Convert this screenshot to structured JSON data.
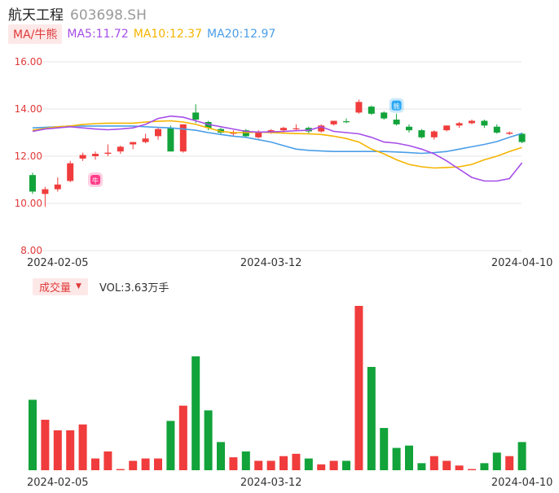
{
  "header": {
    "name": "航天工程",
    "code": "603698.SH"
  },
  "ma_legend": {
    "selector": "MA/牛熊",
    "ma5": "MA5:11.72",
    "ma10": "MA10:12.37",
    "ma20": "MA20:12.97",
    "colors": {
      "ma5": "#a64ee8",
      "ma10": "#f5b400",
      "ma20": "#4a9ee8"
    }
  },
  "volume_legend": {
    "selector": "成交量",
    "value": "VOL:3.63万手"
  },
  "markers": {
    "bull": "牛",
    "bear": "熊"
  },
  "colors": {
    "up": "#f03c3c",
    "down": "#12a33a",
    "axis_text": "#e03a3a",
    "grid": "#e6e6e6"
  },
  "chart_data": {
    "type": "candlestick",
    "y_ticks": [
      "16.00",
      "14.00",
      "12.00",
      "10.00",
      "8.00"
    ],
    "ylim": [
      8,
      16
    ],
    "x_tick_labels": [
      "2024-02-05",
      "2024-03-12",
      "2024-04-10"
    ],
    "x_tick_index": [
      2,
      19,
      39
    ],
    "candles": [
      {
        "o": 11.2,
        "h": 11.3,
        "l": 10.4,
        "c": 10.5
      },
      {
        "o": 10.4,
        "h": 10.7,
        "l": 9.85,
        "c": 10.6
      },
      {
        "o": 10.6,
        "h": 11.1,
        "l": 10.5,
        "c": 10.8
      },
      {
        "o": 10.95,
        "h": 11.8,
        "l": 10.9,
        "c": 11.7
      },
      {
        "o": 11.9,
        "h": 12.15,
        "l": 11.8,
        "c": 12.05
      },
      {
        "o": 12.0,
        "h": 12.2,
        "l": 11.85,
        "c": 12.1
      },
      {
        "o": 12.1,
        "h": 12.5,
        "l": 12.0,
        "c": 12.15
      },
      {
        "o": 12.2,
        "h": 12.45,
        "l": 12.1,
        "c": 12.4
      },
      {
        "o": 12.5,
        "h": 12.6,
        "l": 12.3,
        "c": 12.6
      },
      {
        "o": 12.6,
        "h": 12.95,
        "l": 12.55,
        "c": 12.75
      },
      {
        "o": 12.85,
        "h": 13.2,
        "l": 12.7,
        "c": 13.15
      },
      {
        "o": 13.2,
        "h": 13.3,
        "l": 12.2,
        "c": 12.2
      },
      {
        "o": 12.2,
        "h": 13.35,
        "l": 12.15,
        "c": 13.35
      },
      {
        "o": 13.85,
        "h": 14.2,
        "l": 13.4,
        "c": 13.55
      },
      {
        "o": 13.45,
        "h": 13.5,
        "l": 13.1,
        "c": 13.2
      },
      {
        "o": 13.15,
        "h": 13.2,
        "l": 12.95,
        "c": 13.0
      },
      {
        "o": 12.95,
        "h": 13.1,
        "l": 12.85,
        "c": 13.0
      },
      {
        "o": 13.1,
        "h": 13.15,
        "l": 12.8,
        "c": 12.85
      },
      {
        "o": 12.8,
        "h": 13.1,
        "l": 12.75,
        "c": 13.05
      },
      {
        "o": 13.0,
        "h": 13.15,
        "l": 12.95,
        "c": 13.1
      },
      {
        "o": 13.1,
        "h": 13.25,
        "l": 13.0,
        "c": 13.2
      },
      {
        "o": 13.15,
        "h": 13.35,
        "l": 13.1,
        "c": 13.18
      },
      {
        "o": 13.2,
        "h": 13.25,
        "l": 12.95,
        "c": 13.05
      },
      {
        "o": 13.05,
        "h": 13.35,
        "l": 13.0,
        "c": 13.3
      },
      {
        "o": 13.35,
        "h": 13.5,
        "l": 13.3,
        "c": 13.5
      },
      {
        "o": 13.48,
        "h": 13.6,
        "l": 13.4,
        "c": 13.45
      },
      {
        "o": 13.85,
        "h": 14.4,
        "l": 13.8,
        "c": 14.3
      },
      {
        "o": 14.1,
        "h": 14.15,
        "l": 13.75,
        "c": 13.8
      },
      {
        "o": 13.85,
        "h": 13.9,
        "l": 13.55,
        "c": 13.6
      },
      {
        "o": 13.55,
        "h": 13.8,
        "l": 13.3,
        "c": 13.35
      },
      {
        "o": 13.25,
        "h": 13.35,
        "l": 13.0,
        "c": 13.1
      },
      {
        "o": 13.1,
        "h": 13.15,
        "l": 12.75,
        "c": 12.8
      },
      {
        "o": 12.8,
        "h": 13.1,
        "l": 12.7,
        "c": 13.05
      },
      {
        "o": 13.1,
        "h": 13.3,
        "l": 13.05,
        "c": 13.3
      },
      {
        "o": 13.3,
        "h": 13.45,
        "l": 13.2,
        "c": 13.4
      },
      {
        "o": 13.4,
        "h": 13.55,
        "l": 13.35,
        "c": 13.5
      },
      {
        "o": 13.5,
        "h": 13.55,
        "l": 13.2,
        "c": 13.3
      },
      {
        "o": 13.25,
        "h": 13.35,
        "l": 12.95,
        "c": 13.0
      },
      {
        "o": 12.95,
        "h": 13.05,
        "l": 12.9,
        "c": 13.0
      },
      {
        "o": 12.95,
        "h": 13.0,
        "l": 12.55,
        "c": 12.6
      }
    ],
    "ma5": [
      13.05,
      13.15,
      13.2,
      13.25,
      13.2,
      13.15,
      13.12,
      13.15,
      13.2,
      13.35,
      13.6,
      13.7,
      13.65,
      13.5,
      13.35,
      13.25,
      13.15,
      13.05,
      13.02,
      13.03,
      13.05,
      13.08,
      13.1,
      13.25,
      13.05,
      13.0,
      12.95,
      12.8,
      12.6,
      12.55,
      12.45,
      12.3,
      12.1,
      11.8,
      11.45,
      11.1,
      10.95,
      10.95,
      11.05,
      11.72
    ],
    "ma10": [
      13.1,
      13.18,
      13.25,
      13.28,
      13.35,
      13.38,
      13.4,
      13.4,
      13.4,
      13.45,
      13.48,
      13.5,
      13.45,
      13.35,
      13.2,
      13.05,
      13.0,
      13.0,
      13.02,
      13.0,
      12.98,
      12.96,
      12.95,
      12.92,
      12.85,
      12.75,
      12.6,
      12.3,
      12.1,
      11.85,
      11.65,
      11.55,
      11.5,
      11.52,
      11.55,
      11.65,
      11.85,
      12.0,
      12.2,
      12.37
    ],
    "ma20": [
      13.2,
      13.22,
      13.25,
      13.28,
      13.28,
      13.28,
      13.28,
      13.28,
      13.28,
      13.25,
      13.22,
      13.2,
      13.15,
      13.1,
      13.0,
      12.92,
      12.85,
      12.8,
      12.7,
      12.6,
      12.45,
      12.3,
      12.25,
      12.22,
      12.2,
      12.2,
      12.2,
      12.2,
      12.2,
      12.18,
      12.15,
      12.12,
      12.15,
      12.2,
      12.3,
      12.4,
      12.5,
      12.62,
      12.8,
      12.97
    ],
    "bull_marker_index": 5,
    "bear_marker_index": 29,
    "volumes": [
      60,
      43,
      34,
      34,
      39,
      10,
      16,
      1,
      8,
      10,
      10,
      42,
      55,
      97,
      51,
      24,
      11,
      16,
      8,
      8,
      12,
      14,
      10,
      5,
      8,
      8,
      140,
      88,
      36,
      19,
      21,
      6,
      12,
      8,
      4,
      1,
      6,
      15,
      12,
      24
    ]
  }
}
